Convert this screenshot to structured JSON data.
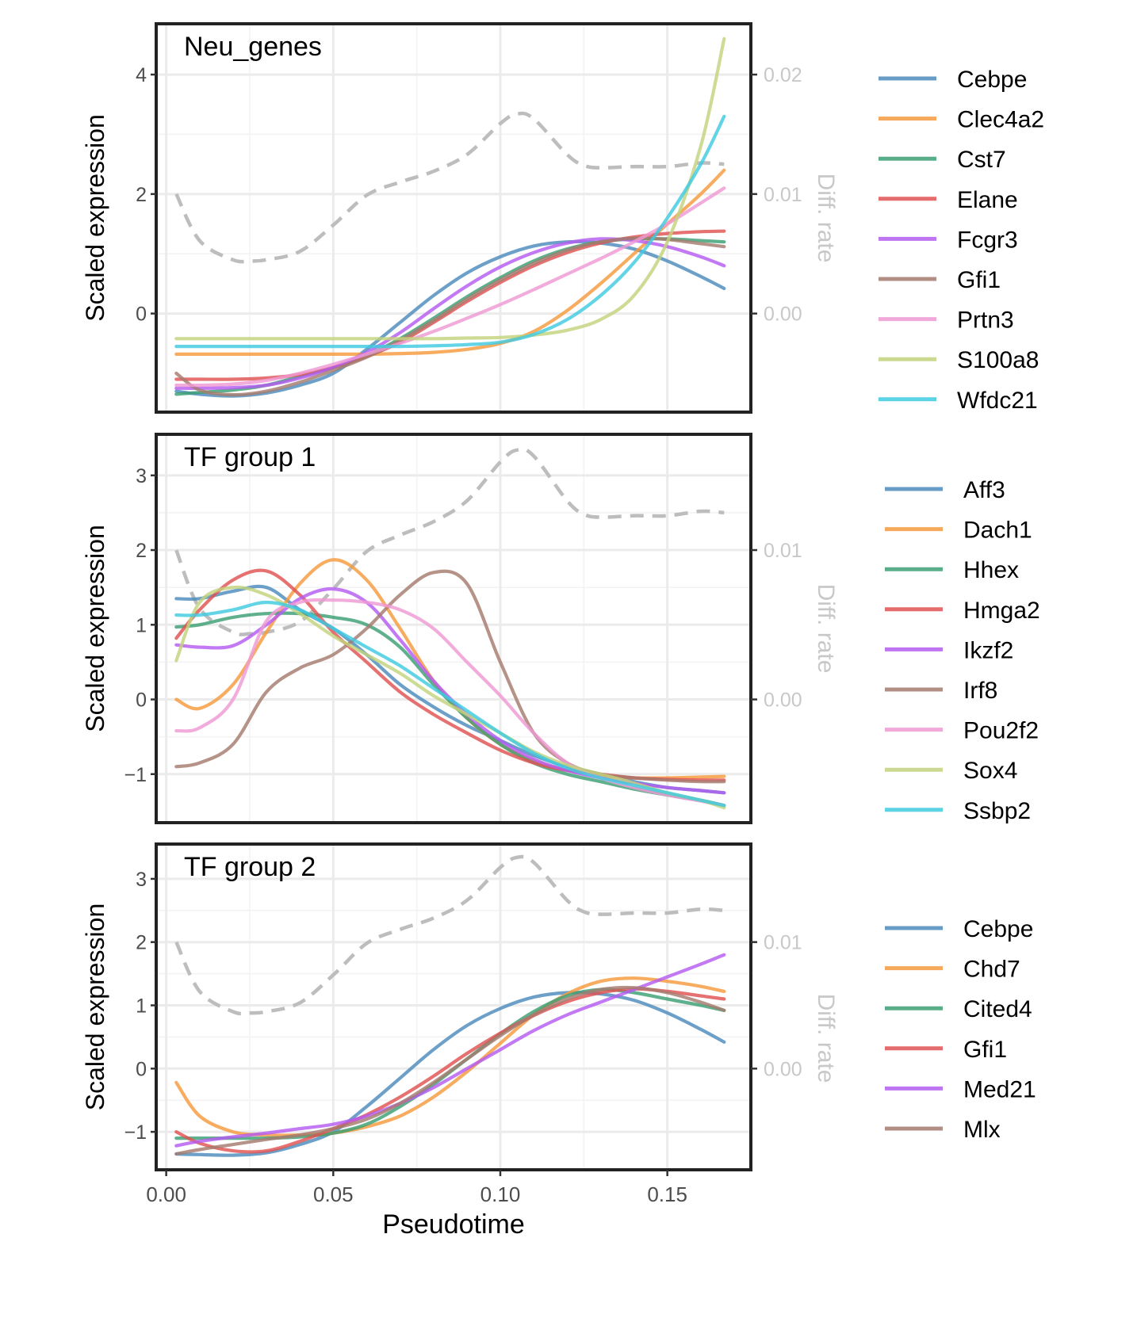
{
  "chart_data": [
    {
      "type": "line",
      "title": "Neu_genes",
      "xlabel": "Pseudotime",
      "ylabel": "Scaled expression",
      "ylabel_right": "Diff. rate",
      "xlim": [
        -0.003,
        0.175
      ],
      "ylim": [
        -1.65,
        4.85
      ],
      "x_ticks": [
        0.0,
        0.05,
        0.1,
        0.15
      ],
      "x_tick_labels": [
        "0.00",
        "0.05",
        "0.10",
        "0.15"
      ],
      "y_ticks": [
        0,
        2,
        4
      ],
      "y_tick_labels": [
        "0",
        "2",
        "4"
      ],
      "y2_ticks": [
        0.0,
        0.01,
        0.02
      ],
      "y2_tick_labels": [
        "0.00",
        "0.01",
        "0.02"
      ],
      "y2_scale": 200,
      "grid": true,
      "legend": "right",
      "diff_rate": {
        "style": "dashed",
        "color": "#bdbdbd",
        "x": [
          0.003,
          0.01,
          0.02,
          0.025,
          0.03,
          0.04,
          0.05,
          0.06,
          0.07,
          0.08,
          0.09,
          0.1,
          0.105,
          0.11,
          0.12,
          0.125,
          0.13,
          0.14,
          0.15,
          0.16,
          0.167
        ],
        "y": [
          0.01,
          0.0061,
          0.0045,
          0.0044,
          0.0045,
          0.0052,
          0.0074,
          0.0099,
          0.011,
          0.0119,
          0.0133,
          0.0159,
          0.0167,
          0.0163,
          0.0133,
          0.0124,
          0.0122,
          0.0123,
          0.0123,
          0.0126,
          0.0125
        ]
      },
      "x": [
        0.003,
        0.01,
        0.02,
        0.03,
        0.04,
        0.05,
        0.06,
        0.07,
        0.08,
        0.09,
        0.1,
        0.11,
        0.12,
        0.13,
        0.14,
        0.15,
        0.16,
        0.167
      ],
      "series": [
        {
          "name": "Cebpe",
          "color": "#4c8bbd",
          "values": [
            -1.3,
            -1.35,
            -1.38,
            -1.33,
            -1.2,
            -1.0,
            -0.6,
            -0.15,
            0.3,
            0.68,
            0.95,
            1.13,
            1.2,
            1.18,
            1.08,
            0.88,
            0.62,
            0.42
          ]
        },
        {
          "name": "Clec4a2",
          "color": "#f59a3d",
          "values": [
            -0.68,
            -0.68,
            -0.68,
            -0.68,
            -0.68,
            -0.68,
            -0.68,
            -0.67,
            -0.65,
            -0.6,
            -0.5,
            -0.3,
            0.05,
            0.5,
            1.0,
            1.5,
            2.0,
            2.4
          ]
        },
        {
          "name": "Cst7",
          "color": "#3c9f73",
          "values": [
            -1.35,
            -1.32,
            -1.28,
            -1.2,
            -1.05,
            -0.9,
            -0.7,
            -0.42,
            -0.08,
            0.28,
            0.6,
            0.88,
            1.08,
            1.2,
            1.25,
            1.25,
            1.22,
            1.2
          ]
        },
        {
          "name": "Elane",
          "color": "#e05252",
          "values": [
            -1.1,
            -1.1,
            -1.1,
            -1.08,
            -1.02,
            -0.9,
            -0.72,
            -0.48,
            -0.15,
            0.2,
            0.52,
            0.8,
            1.02,
            1.18,
            1.28,
            1.34,
            1.37,
            1.38
          ]
        },
        {
          "name": "Fcgr3",
          "color": "#b45cf0",
          "values": [
            -1.25,
            -1.25,
            -1.24,
            -1.2,
            -1.08,
            -0.9,
            -0.65,
            -0.32,
            0.08,
            0.46,
            0.78,
            1.02,
            1.18,
            1.25,
            1.22,
            1.12,
            0.95,
            0.8
          ]
        },
        {
          "name": "Gfi1",
          "color": "#a57b6f",
          "values": [
            -1.0,
            -1.28,
            -1.36,
            -1.3,
            -1.15,
            -0.95,
            -0.73,
            -0.45,
            -0.12,
            0.24,
            0.56,
            0.84,
            1.06,
            1.2,
            1.26,
            1.24,
            1.17,
            1.12
          ]
        },
        {
          "name": "Prtn3",
          "color": "#ef9ad4",
          "values": [
            -1.2,
            -1.2,
            -1.18,
            -1.12,
            -1.0,
            -0.85,
            -0.68,
            -0.5,
            -0.3,
            -0.08,
            0.15,
            0.4,
            0.66,
            0.92,
            1.2,
            1.5,
            1.85,
            2.1
          ]
        },
        {
          "name": "S100a8",
          "color": "#c3d37e",
          "values": [
            -0.42,
            -0.42,
            -0.42,
            -0.42,
            -0.42,
            -0.42,
            -0.42,
            -0.42,
            -0.42,
            -0.41,
            -0.4,
            -0.36,
            -0.28,
            -0.1,
            0.3,
            1.2,
            2.8,
            4.6
          ]
        },
        {
          "name": "Wfdc21",
          "color": "#40cbe0",
          "values": [
            -0.55,
            -0.55,
            -0.55,
            -0.55,
            -0.55,
            -0.55,
            -0.55,
            -0.55,
            -0.54,
            -0.52,
            -0.48,
            -0.35,
            -0.1,
            0.3,
            0.85,
            1.6,
            2.5,
            3.3
          ]
        }
      ]
    },
    {
      "type": "line",
      "title": "TF group 1",
      "xlabel": "Pseudotime",
      "ylabel": "Scaled expression",
      "ylabel_right": "Diff. rate",
      "xlim": [
        -0.003,
        0.175
      ],
      "ylim": [
        -1.65,
        3.55
      ],
      "x_ticks": [
        0.0,
        0.05,
        0.1,
        0.15
      ],
      "x_tick_labels": [
        "0.00",
        "0.05",
        "0.10",
        "0.15"
      ],
      "y_ticks": [
        -1,
        0,
        1,
        2,
        3
      ],
      "y_tick_labels": [
        "−1",
        "0",
        "1",
        "2",
        "3"
      ],
      "y2_ticks": [
        0.0,
        0.01
      ],
      "y2_tick_labels": [
        "0.00",
        "0.01"
      ],
      "y2_scale": 200,
      "grid": true,
      "legend": "right",
      "diff_rate": {
        "style": "dashed",
        "color": "#bdbdbd",
        "x": [
          0.003,
          0.01,
          0.02,
          0.025,
          0.03,
          0.04,
          0.05,
          0.06,
          0.07,
          0.08,
          0.09,
          0.1,
          0.105,
          0.11,
          0.12,
          0.125,
          0.13,
          0.14,
          0.15,
          0.16,
          0.167
        ],
        "y": [
          0.01,
          0.0061,
          0.0045,
          0.0044,
          0.0045,
          0.0052,
          0.0074,
          0.0099,
          0.011,
          0.0119,
          0.0133,
          0.0159,
          0.0167,
          0.0163,
          0.0133,
          0.0124,
          0.0122,
          0.0123,
          0.0123,
          0.0126,
          0.0125
        ]
      },
      "x": [
        0.003,
        0.01,
        0.02,
        0.03,
        0.04,
        0.05,
        0.06,
        0.07,
        0.08,
        0.09,
        0.1,
        0.11,
        0.12,
        0.13,
        0.14,
        0.15,
        0.16,
        0.167
      ],
      "series": [
        {
          "name": "Aff3",
          "color": "#4c8bbd",
          "values": [
            1.35,
            1.35,
            1.45,
            1.5,
            1.2,
            0.95,
            0.6,
            0.2,
            -0.1,
            -0.35,
            -0.55,
            -0.75,
            -0.9,
            -1.0,
            -1.1,
            -1.18,
            -1.22,
            -1.25
          ]
        },
        {
          "name": "Dach1",
          "color": "#f59a3d",
          "values": [
            0.0,
            -0.12,
            0.2,
            0.9,
            1.55,
            1.87,
            1.6,
            0.95,
            0.25,
            -0.25,
            -0.6,
            -0.82,
            -0.95,
            -1.02,
            -1.05,
            -1.05,
            -1.04,
            -1.03
          ]
        },
        {
          "name": "Hhex",
          "color": "#3c9f73",
          "values": [
            0.97,
            1.0,
            1.1,
            1.15,
            1.15,
            1.1,
            1.0,
            0.7,
            0.2,
            -0.25,
            -0.6,
            -0.85,
            -1.0,
            -1.1,
            -1.2,
            -1.28,
            -1.35,
            -1.42
          ]
        },
        {
          "name": "Hmga2",
          "color": "#e05252",
          "values": [
            0.82,
            1.2,
            1.6,
            1.72,
            1.4,
            0.9,
            0.5,
            0.1,
            -0.2,
            -0.45,
            -0.68,
            -0.85,
            -0.95,
            -1.0,
            -1.05,
            -1.07,
            -1.08,
            -1.08
          ]
        },
        {
          "name": "Ikzf2",
          "color": "#b45cf0",
          "values": [
            0.73,
            0.7,
            0.72,
            1.0,
            1.35,
            1.48,
            1.3,
            0.8,
            0.25,
            -0.2,
            -0.55,
            -0.8,
            -0.95,
            -1.05,
            -1.12,
            -1.18,
            -1.22,
            -1.25
          ]
        },
        {
          "name": "Irf8",
          "color": "#a57b6f",
          "values": [
            -0.9,
            -0.85,
            -0.6,
            0.1,
            0.42,
            0.6,
            0.95,
            1.4,
            1.7,
            1.55,
            0.5,
            -0.45,
            -0.85,
            -1.0,
            -1.05,
            -1.08,
            -1.1,
            -1.1
          ]
        },
        {
          "name": "Pou2f2",
          "color": "#ef9ad4",
          "values": [
            -0.42,
            -0.38,
            0.0,
            1.05,
            1.3,
            1.33,
            1.3,
            1.2,
            0.95,
            0.5,
            0.05,
            -0.45,
            -0.85,
            -1.05,
            -1.18,
            -1.28,
            -1.36,
            -1.42
          ]
        },
        {
          "name": "Sox4",
          "color": "#c3d37e",
          "values": [
            0.52,
            1.3,
            1.5,
            1.4,
            1.15,
            0.85,
            0.6,
            0.35,
            0.05,
            -0.2,
            -0.45,
            -0.7,
            -0.88,
            -1.0,
            -1.12,
            -1.25,
            -1.35,
            -1.45
          ]
        },
        {
          "name": "Ssbp2",
          "color": "#40cbe0",
          "values": [
            1.13,
            1.13,
            1.2,
            1.3,
            1.2,
            0.95,
            0.7,
            0.45,
            0.15,
            -0.15,
            -0.45,
            -0.72,
            -0.92,
            -1.05,
            -1.15,
            -1.25,
            -1.35,
            -1.42
          ]
        }
      ]
    },
    {
      "type": "line",
      "title": "TF group 2",
      "xlabel": "Pseudotime",
      "ylabel": "Scaled expression",
      "ylabel_right": "Diff. rate",
      "xlim": [
        -0.003,
        0.175
      ],
      "ylim": [
        -1.6,
        3.55
      ],
      "x_ticks": [
        0.0,
        0.05,
        0.1,
        0.15
      ],
      "x_tick_labels": [
        "0.00",
        "0.05",
        "0.10",
        "0.15"
      ],
      "y_ticks": [
        -1,
        0,
        1,
        2,
        3
      ],
      "y_tick_labels": [
        "−1",
        "0",
        "1",
        "2",
        "3"
      ],
      "y2_ticks": [
        0.0,
        0.01
      ],
      "y2_tick_labels": [
        "0.00",
        "0.01"
      ],
      "y2_scale": 200,
      "grid": true,
      "legend": "right",
      "diff_rate": {
        "style": "dashed",
        "color": "#bdbdbd",
        "x": [
          0.003,
          0.01,
          0.02,
          0.025,
          0.03,
          0.04,
          0.05,
          0.06,
          0.07,
          0.08,
          0.09,
          0.1,
          0.105,
          0.11,
          0.12,
          0.125,
          0.13,
          0.14,
          0.15,
          0.16,
          0.167
        ],
        "y": [
          0.01,
          0.0061,
          0.0045,
          0.0044,
          0.0045,
          0.0052,
          0.0074,
          0.0099,
          0.011,
          0.0119,
          0.0133,
          0.0159,
          0.0167,
          0.0163,
          0.0133,
          0.0124,
          0.0122,
          0.0123,
          0.0123,
          0.0126,
          0.0125
        ]
      },
      "x": [
        0.003,
        0.01,
        0.02,
        0.03,
        0.04,
        0.05,
        0.06,
        0.07,
        0.08,
        0.09,
        0.1,
        0.11,
        0.12,
        0.13,
        0.14,
        0.15,
        0.16,
        0.167
      ],
      "series": [
        {
          "name": "Cebpe",
          "color": "#4c8bbd",
          "values": [
            -1.35,
            -1.36,
            -1.37,
            -1.33,
            -1.2,
            -1.0,
            -0.6,
            -0.15,
            0.3,
            0.68,
            0.95,
            1.13,
            1.2,
            1.18,
            1.08,
            0.88,
            0.62,
            0.42
          ]
        },
        {
          "name": "Chd7",
          "color": "#f59a3d",
          "values": [
            -0.22,
            -0.75,
            -1.0,
            -1.05,
            -1.05,
            -1.02,
            -0.92,
            -0.75,
            -0.45,
            -0.05,
            0.4,
            0.85,
            1.18,
            1.38,
            1.43,
            1.38,
            1.3,
            1.22
          ]
        },
        {
          "name": "Cited4",
          "color": "#3c9f73",
          "values": [
            -1.1,
            -1.1,
            -1.1,
            -1.1,
            -1.08,
            -1.02,
            -0.88,
            -0.6,
            -0.25,
            0.15,
            0.55,
            0.9,
            1.15,
            1.25,
            1.2,
            1.1,
            1.0,
            0.92
          ]
        },
        {
          "name": "Gfi1",
          "color": "#e05252",
          "values": [
            -1.0,
            -1.18,
            -1.3,
            -1.3,
            -1.15,
            -0.95,
            -0.73,
            -0.45,
            -0.12,
            0.24,
            0.56,
            0.84,
            1.06,
            1.2,
            1.26,
            1.22,
            1.15,
            1.1
          ]
        },
        {
          "name": "Med21",
          "color": "#b45cf0",
          "values": [
            -1.22,
            -1.15,
            -1.08,
            -1.02,
            -0.95,
            -0.88,
            -0.75,
            -0.55,
            -0.3,
            0.0,
            0.3,
            0.6,
            0.85,
            1.05,
            1.25,
            1.45,
            1.65,
            1.8
          ]
        },
        {
          "name": "Mlx",
          "color": "#a57b6f",
          "values": [
            -1.35,
            -1.28,
            -1.2,
            -1.12,
            -1.05,
            -0.95,
            -0.8,
            -0.55,
            -0.22,
            0.15,
            0.52,
            0.85,
            1.1,
            1.25,
            1.28,
            1.2,
            1.05,
            0.92
          ]
        }
      ]
    }
  ]
}
